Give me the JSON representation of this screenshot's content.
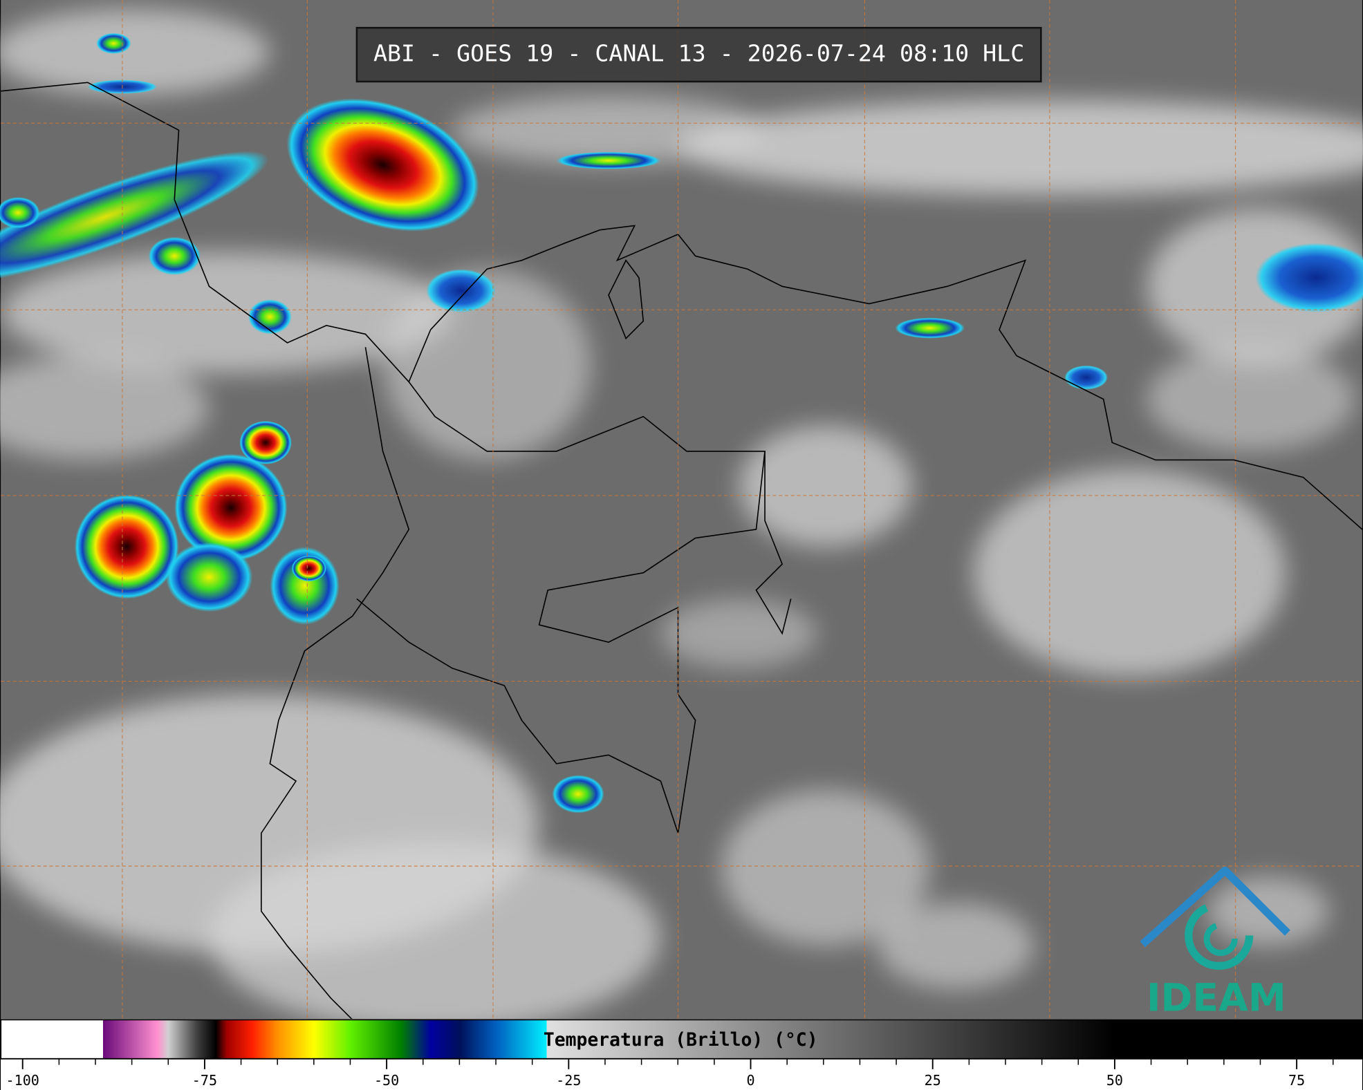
{
  "header": {
    "title": "ABI - GOES 19 - CANAL 13 - 2026-07-24 08:10 HLC"
  },
  "colorbar": {
    "label": "Temperatura (Brillo) (°C)",
    "range": [
      -103,
      84
    ],
    "ticks": [
      -100,
      -75,
      -50,
      -25,
      0,
      25,
      50,
      75
    ],
    "minor_ticks": [
      -95,
      -90,
      -85,
      -80,
      -70,
      -65,
      -60,
      -55,
      -45,
      -40,
      -35,
      -30,
      -20,
      -15,
      -10,
      -5,
      5,
      10,
      15,
      20,
      30,
      35,
      40,
      45,
      55,
      60,
      65,
      70,
      80
    ]
  },
  "logo": {
    "text": "IDEAM"
  }
}
